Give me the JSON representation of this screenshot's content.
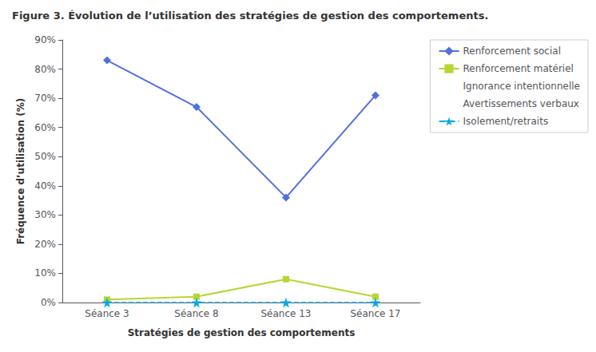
{
  "chart_data": {
    "type": "line",
    "title": "Figure 3. Évolution de l’utilisation des stratégies de gestion des comportements.",
    "x_label": "Stratégies de gestion des comportements",
    "y_label": "Fréquence d’utilisation (%)",
    "categories": [
      "Séance 3",
      "Séance 8",
      "Séance 13",
      "Séance 17"
    ],
    "series": [
      {
        "name": "Renforcement social",
        "values": [
          83,
          67,
          36,
          71
        ],
        "marker": "diamond",
        "line_style": "solid"
      },
      {
        "name": "Renforcement matériel",
        "values": [
          1,
          2,
          8,
          2
        ],
        "marker": "square",
        "line_style": "solid"
      },
      {
        "name": "Ignorance intentionnelle",
        "values": [
          null,
          null,
          null,
          null
        ],
        "marker": "none",
        "line_style": "none"
      },
      {
        "name": "Avertissements verbaux",
        "values": [
          null,
          null,
          null,
          null
        ],
        "marker": "none",
        "line_style": "none"
      },
      {
        "name": "Isolement/retraits",
        "values": [
          0,
          0,
          0,
          0
        ],
        "marker": "star",
        "line_style": "dashed"
      }
    ],
    "ylim": [
      0,
      90
    ],
    "yticks": [
      {
        "value": 0,
        "label": "0%"
      },
      {
        "value": 10,
        "label": "10%"
      },
      {
        "value": 20,
        "label": "20%"
      },
      {
        "value": 30,
        "label": "30%"
      },
      {
        "value": 40,
        "label": "40%"
      },
      {
        "value": 50,
        "label": "50%"
      },
      {
        "value": 60,
        "label": "60%"
      },
      {
        "value": 70,
        "label": "70%"
      },
      {
        "value": 80,
        "label": "80%"
      },
      {
        "value": 90,
        "label": "90%"
      }
    ],
    "grid": false,
    "legend": "right"
  }
}
